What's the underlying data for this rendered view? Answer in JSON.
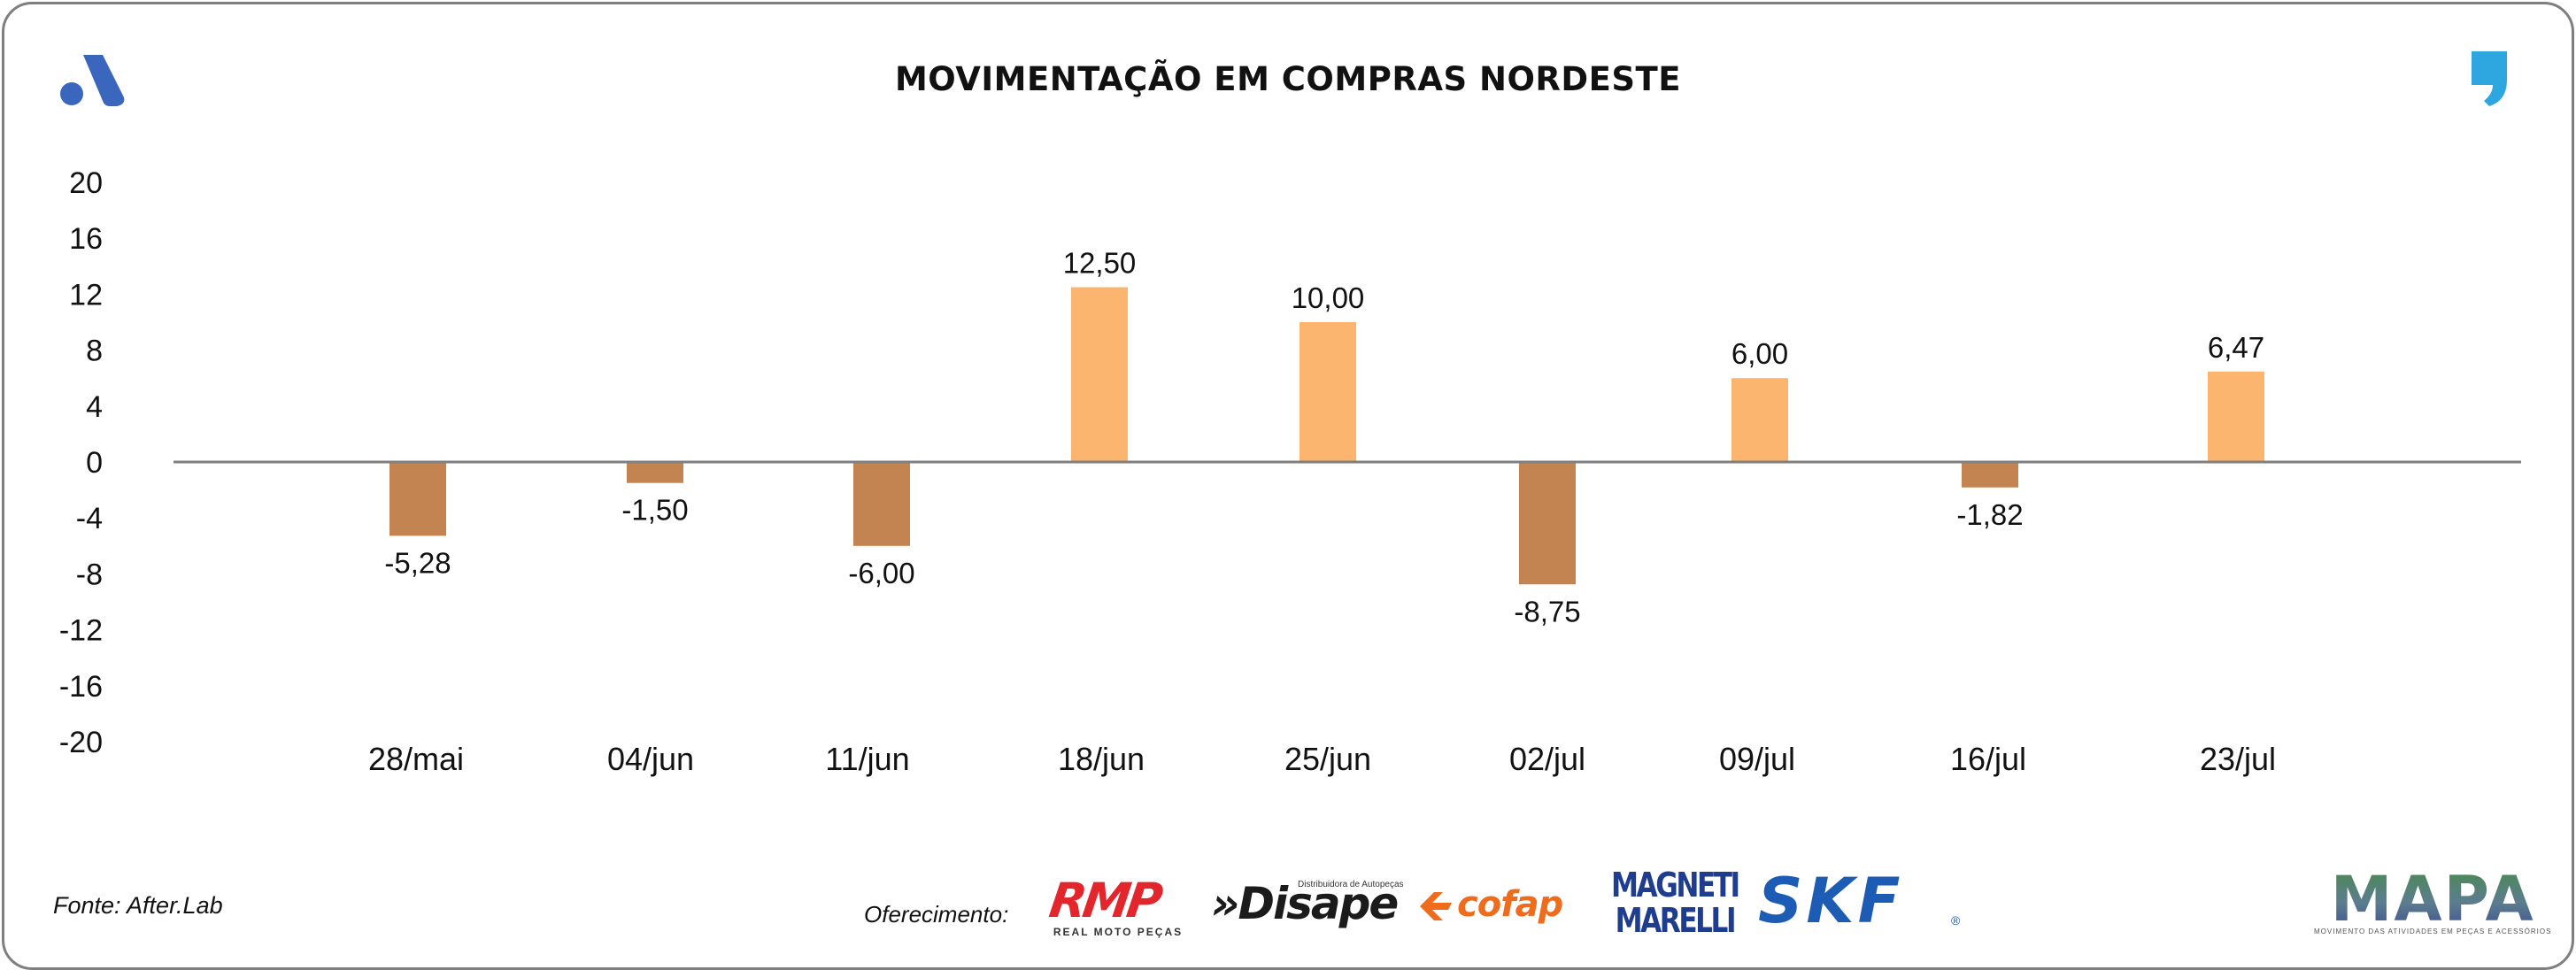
{
  "header": {
    "title": "MOVIMENTAÇÃO EM COMPRAS NORDESTE",
    "logo_icon": "brand-a-logo-icon",
    "quote_icon": "comma-quote-icon"
  },
  "colors": {
    "positive_bar": "#fbb56e",
    "negative_bar": "#c48452",
    "axis_line": "#7f7f7f",
    "logo_blue": "#3a66bd",
    "quote_blue": "#2ea6e0"
  },
  "chart_data": {
    "type": "bar",
    "title": "MOVIMENTAÇÃO EM COMPRAS NORDESTE",
    "categories": [
      "28/mai",
      "04/jun",
      "11/jun",
      "18/jun",
      "25/jun",
      "02/jul",
      "09/jul",
      "16/jul",
      "23/jul"
    ],
    "values": [
      -5.28,
      -1.5,
      -6.0,
      12.5,
      10.0,
      -8.75,
      6.0,
      -1.82,
      6.47
    ],
    "value_labels": [
      "-5,28",
      "-1,50",
      "-6,00",
      "12,50",
      "10,00",
      "-8,75",
      "6,00",
      "-1,82",
      "6,47"
    ],
    "yticks": [
      20,
      16,
      12,
      8,
      4,
      0,
      -4,
      -8,
      -12,
      -16,
      -20
    ],
    "ylim": [
      -20,
      20
    ],
    "xlabel": "",
    "ylabel": "",
    "grid": false,
    "legend": "none"
  },
  "footer": {
    "source": "Fonte: After.Lab",
    "sponsor_label": "Oferecimento:",
    "sponsors": {
      "rmp": "RMP",
      "rmp_sub": "REAL MOTO PEÇAS",
      "disape": "»Disape",
      "disape_tagline": "Distribuidora de Autopeças",
      "cofap": "cofap",
      "magneti_line1": "MAGNETI",
      "magneti_line2": "MARELLI",
      "skf": "SKF",
      "skf_reg": "®",
      "mapa": "MAPA",
      "mapa_sub": "MOVIMENTO DAS ATIVIDADES EM PEÇAS E ACESSÓRIOS"
    }
  }
}
